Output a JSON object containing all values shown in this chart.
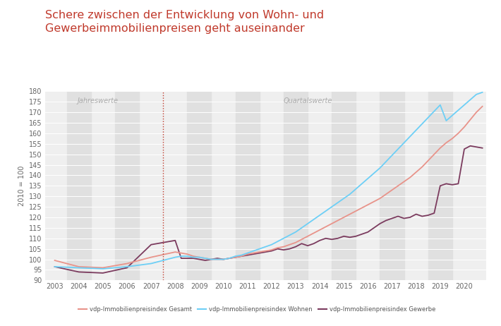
{
  "title": "Schere zwischen der Entwicklung von Wohn- und\nGewerbeimmobilienpreisen geht auseinander",
  "title_color": "#c0392b",
  "ylabel": "2010 = 100",
  "ylim": [
    90,
    180
  ],
  "yticks": [
    90,
    95,
    100,
    105,
    110,
    115,
    120,
    125,
    130,
    135,
    140,
    145,
    150,
    155,
    160,
    165,
    170,
    175,
    180
  ],
  "background_color": "#ffffff",
  "label_jahreswerte": "Jahreswerte",
  "label_quartalswerte": "Quartalswerte",
  "divider_x": 2007.5,
  "legend_labels": [
    "vdp-Immobilienpreisindex Gesamt",
    "vdp-Immobilienpreisindex Wohnen",
    "vdp-Immobilienpreisindex Gewerbe"
  ],
  "legend_colors": [
    "#e8938a",
    "#6dcff6",
    "#7b3b5e"
  ],
  "gesamt_color": "#e8938a",
  "wohnen_color": "#6dcff6",
  "gewerbe_color": "#7b3b5e",
  "gesamt_x": [
    2003,
    2004,
    2005,
    2006,
    2007,
    2008.0,
    2008.25,
    2008.5,
    2008.75,
    2009.0,
    2009.25,
    2009.5,
    2009.75,
    2010.0,
    2010.25,
    2010.5,
    2010.75,
    2011.0,
    2011.25,
    2011.5,
    2011.75,
    2012.0,
    2012.25,
    2012.5,
    2012.75,
    2013.0,
    2013.25,
    2013.5,
    2013.75,
    2014.0,
    2014.25,
    2014.5,
    2014.75,
    2015.0,
    2015.25,
    2015.5,
    2015.75,
    2016.0,
    2016.25,
    2016.5,
    2016.75,
    2017.0,
    2017.25,
    2017.5,
    2017.75,
    2018.0,
    2018.25,
    2018.5,
    2018.75,
    2019.0,
    2019.25,
    2019.5,
    2019.75,
    2020.0,
    2020.25,
    2020.5,
    2020.75
  ],
  "gesamt_y": [
    99.5,
    96.5,
    96.0,
    98.0,
    101.0,
    103.5,
    103.0,
    102.5,
    101.5,
    101.0,
    100.5,
    100.0,
    100.0,
    100.0,
    100.5,
    101.0,
    101.5,
    102.5,
    103.0,
    103.5,
    104.0,
    104.5,
    105.5,
    106.0,
    107.0,
    108.0,
    109.5,
    111.0,
    112.5,
    114.0,
    115.5,
    117.0,
    118.5,
    120.0,
    121.5,
    123.0,
    124.5,
    126.0,
    127.5,
    129.0,
    131.0,
    133.0,
    135.0,
    137.0,
    139.0,
    141.5,
    144.0,
    147.0,
    150.0,
    153.0,
    155.5,
    157.5,
    160.0,
    163.0,
    166.5,
    170.0,
    172.8
  ],
  "wohnen_x": [
    2003,
    2004,
    2005,
    2006,
    2007,
    2008.0,
    2008.25,
    2008.5,
    2008.75,
    2009.0,
    2009.25,
    2009.5,
    2009.75,
    2010.0,
    2010.25,
    2010.5,
    2010.75,
    2011.0,
    2011.25,
    2011.5,
    2011.75,
    2012.0,
    2012.25,
    2012.5,
    2012.75,
    2013.0,
    2013.25,
    2013.5,
    2013.75,
    2014.0,
    2014.25,
    2014.5,
    2014.75,
    2015.0,
    2015.25,
    2015.5,
    2015.75,
    2016.0,
    2016.25,
    2016.5,
    2016.75,
    2017.0,
    2017.25,
    2017.5,
    2017.75,
    2018.0,
    2018.25,
    2018.5,
    2018.75,
    2019.0,
    2019.25,
    2019.5,
    2019.75,
    2020.0,
    2020.25,
    2020.5,
    2020.75
  ],
  "wohnen_y": [
    96.5,
    96.0,
    95.5,
    96.5,
    98.0,
    101.0,
    101.5,
    101.5,
    101.0,
    101.0,
    100.5,
    100.0,
    100.0,
    100.0,
    100.5,
    101.5,
    102.0,
    103.0,
    104.0,
    105.0,
    106.0,
    107.0,
    108.5,
    110.0,
    111.5,
    113.0,
    115.0,
    117.0,
    119.0,
    121.0,
    123.0,
    125.0,
    127.0,
    129.0,
    131.0,
    133.5,
    136.0,
    138.5,
    141.0,
    143.5,
    146.5,
    149.5,
    152.5,
    155.5,
    158.5,
    161.5,
    164.5,
    167.5,
    170.5,
    173.5,
    166.0,
    168.5,
    171.0,
    173.5,
    176.0,
    178.5,
    179.5
  ],
  "gewerbe_x": [
    2003,
    2004,
    2005,
    2006,
    2007,
    2008.0,
    2008.25,
    2008.5,
    2008.75,
    2009.0,
    2009.25,
    2009.5,
    2009.75,
    2010.0,
    2010.25,
    2010.5,
    2010.75,
    2011.0,
    2011.25,
    2011.5,
    2011.75,
    2012.0,
    2012.25,
    2012.5,
    2012.75,
    2013.0,
    2013.25,
    2013.5,
    2013.75,
    2014.0,
    2014.25,
    2014.5,
    2014.75,
    2015.0,
    2015.25,
    2015.5,
    2015.75,
    2016.0,
    2016.25,
    2016.5,
    2016.75,
    2017.0,
    2017.25,
    2017.5,
    2017.75,
    2018.0,
    2018.25,
    2018.5,
    2018.75,
    2019.0,
    2019.25,
    2019.5,
    2019.75,
    2020.0,
    2020.25,
    2020.5,
    2020.75
  ],
  "gewerbe_y": [
    96.5,
    94.0,
    93.5,
    96.0,
    107.0,
    109.0,
    100.5,
    100.5,
    100.5,
    100.0,
    99.5,
    100.0,
    100.5,
    100.0,
    100.5,
    101.0,
    101.5,
    102.0,
    102.5,
    103.0,
    103.5,
    104.0,
    105.0,
    104.5,
    105.0,
    106.0,
    107.5,
    106.5,
    107.5,
    109.0,
    110.0,
    109.5,
    110.0,
    111.0,
    110.5,
    111.0,
    112.0,
    113.0,
    115.0,
    117.0,
    118.5,
    119.5,
    120.5,
    119.5,
    120.0,
    121.5,
    120.5,
    121.0,
    122.0,
    135.0,
    136.0,
    135.5,
    136.0,
    152.5,
    154.0,
    153.5,
    153.0
  ],
  "xticks": [
    2003,
    2004,
    2005,
    2006,
    2007,
    2008,
    2009,
    2010,
    2011,
    2012,
    2013,
    2014,
    2015,
    2016,
    2017,
    2018,
    2019,
    2020
  ],
  "band_odd_ranges": [
    [
      2003.5,
      2004.5
    ],
    [
      2005.5,
      2006.5
    ],
    [
      2008.5,
      2009.5
    ],
    [
      2010.5,
      2011.5
    ],
    [
      2012.5,
      2013.5
    ],
    [
      2014.5,
      2015.5
    ],
    [
      2016.5,
      2017.5
    ],
    [
      2018.5,
      2019.5
    ]
  ],
  "xlim_left": 2002.6,
  "xlim_right": 2020.9
}
